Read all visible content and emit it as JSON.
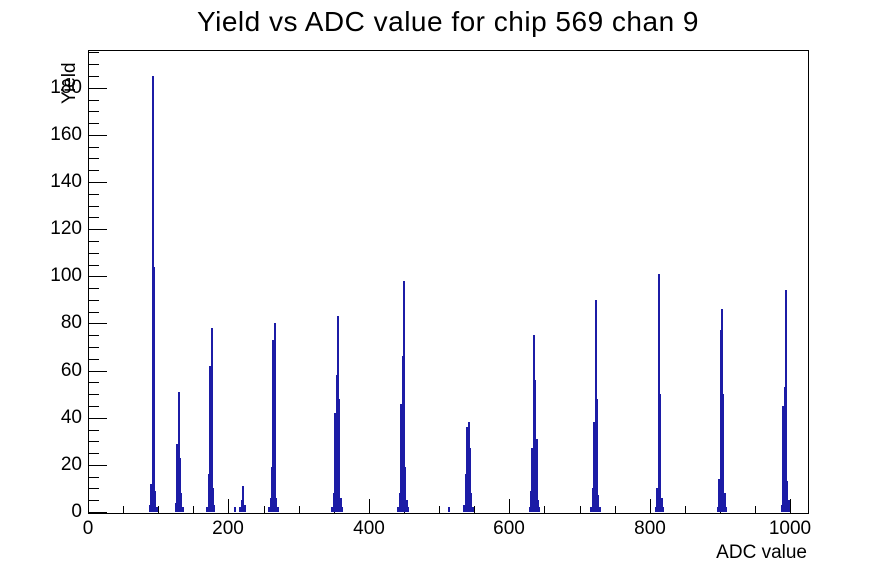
{
  "title": "Yield vs ADC value for chip 569 chan 9",
  "chart_data": {
    "type": "bar",
    "title": "Yield vs ADC value for chip 569 chan 9",
    "xlabel": "ADC value",
    "ylabel": "Yield",
    "xlim": [
      0,
      1024
    ],
    "ylim": [
      0,
      196
    ],
    "x_major_ticks": [
      0,
      200,
      400,
      600,
      800,
      1000
    ],
    "x_minor_step": 50,
    "y_major_ticks": [
      0,
      20,
      40,
      60,
      80,
      100,
      120,
      140,
      160,
      180
    ],
    "y_minor_step": 5,
    "grid": false,
    "legend": null,
    "bar_color": "#1c1ca6",
    "bin_width": 2,
    "bars": [
      [
        88,
        3
      ],
      [
        90,
        12
      ],
      [
        92,
        185
      ],
      [
        94,
        104
      ],
      [
        96,
        9
      ],
      [
        98,
        2
      ],
      [
        125,
        4
      ],
      [
        127,
        29
      ],
      [
        129,
        51
      ],
      [
        131,
        23
      ],
      [
        133,
        8
      ],
      [
        135,
        2
      ],
      [
        170,
        2
      ],
      [
        172,
        16
      ],
      [
        174,
        62
      ],
      [
        176,
        78
      ],
      [
        178,
        10
      ],
      [
        180,
        3
      ],
      [
        209,
        2
      ],
      [
        217,
        2
      ],
      [
        219,
        5
      ],
      [
        221,
        11
      ],
      [
        223,
        3
      ],
      [
        258,
        2
      ],
      [
        260,
        6
      ],
      [
        262,
        19
      ],
      [
        264,
        73
      ],
      [
        266,
        80
      ],
      [
        268,
        6
      ],
      [
        270,
        2
      ],
      [
        348,
        2
      ],
      [
        350,
        8
      ],
      [
        352,
        42
      ],
      [
        354,
        58
      ],
      [
        356,
        83
      ],
      [
        358,
        48
      ],
      [
        360,
        6
      ],
      [
        362,
        2
      ],
      [
        442,
        2
      ],
      [
        444,
        8
      ],
      [
        446,
        46
      ],
      [
        448,
        66
      ],
      [
        450,
        98
      ],
      [
        452,
        19
      ],
      [
        454,
        5
      ],
      [
        456,
        2
      ],
      [
        514,
        2
      ],
      [
        536,
        3
      ],
      [
        538,
        16
      ],
      [
        540,
        36
      ],
      [
        542,
        38
      ],
      [
        544,
        27
      ],
      [
        546,
        8
      ],
      [
        548,
        2
      ],
      [
        629,
        2
      ],
      [
        631,
        9
      ],
      [
        633,
        27
      ],
      [
        635,
        75
      ],
      [
        637,
        56
      ],
      [
        639,
        31
      ],
      [
        641,
        5
      ],
      [
        643,
        2
      ],
      [
        717,
        2
      ],
      [
        719,
        10
      ],
      [
        721,
        38
      ],
      [
        723,
        90
      ],
      [
        725,
        48
      ],
      [
        727,
        7
      ],
      [
        729,
        2
      ],
      [
        809,
        2
      ],
      [
        811,
        10
      ],
      [
        813,
        101
      ],
      [
        815,
        50
      ],
      [
        817,
        6
      ],
      [
        819,
        2
      ],
      [
        897,
        2
      ],
      [
        899,
        14
      ],
      [
        901,
        77
      ],
      [
        903,
        86
      ],
      [
        905,
        50
      ],
      [
        907,
        8
      ],
      [
        909,
        2
      ],
      [
        988,
        3
      ],
      [
        990,
        45
      ],
      [
        992,
        53
      ],
      [
        994,
        94
      ],
      [
        996,
        13
      ],
      [
        998,
        5
      ]
    ]
  }
}
